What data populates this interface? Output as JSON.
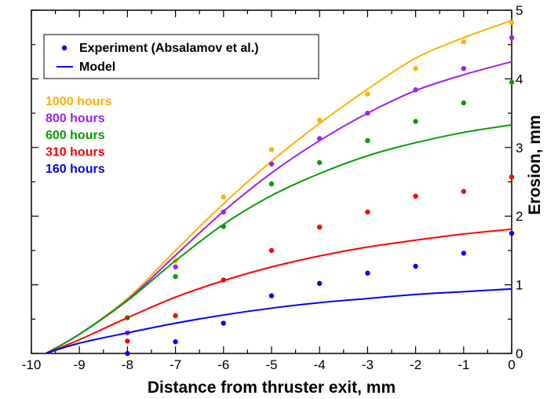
{
  "chart_data": {
    "type": "line",
    "xlabel": "Distance from thruster exit, mm",
    "ylabel": "Erosion, mm",
    "xlim": [
      -10,
      0
    ],
    "ylim": [
      0,
      5
    ],
    "x_ticks": [
      -10,
      -9,
      -8,
      -7,
      -6,
      -5,
      -4,
      -3,
      -2,
      -1,
      0
    ],
    "y_ticks": [
      0,
      1,
      2,
      3,
      4,
      5
    ],
    "grid": false,
    "y_axis_labels_side": "right",
    "legend": {
      "placement": "top-left",
      "entries": [
        {
          "label": "Experiment (Absalamov et al.)",
          "marker": "dot",
          "color": "#0000ff"
        },
        {
          "label": "Model",
          "marker": "line",
          "color": "#0000ff"
        }
      ]
    },
    "series": [
      {
        "name": "1000 hours",
        "color": "#ffb000",
        "experiment": [
          [
            -8,
            0.52
          ],
          [
            -7,
            1.35
          ],
          [
            -6,
            2.28
          ],
          [
            -5,
            2.97
          ],
          [
            -4,
            3.4
          ],
          [
            -3,
            3.78
          ],
          [
            -2,
            4.15
          ],
          [
            -1,
            4.54
          ],
          [
            0,
            4.82
          ]
        ],
        "model": [
          [
            -9.7,
            0.0
          ],
          [
            -9,
            0.28
          ],
          [
            -8,
            0.8
          ],
          [
            -7,
            1.5
          ],
          [
            -6,
            2.18
          ],
          [
            -5,
            2.8
          ],
          [
            -4,
            3.35
          ],
          [
            -3,
            3.85
          ],
          [
            -2,
            4.3
          ],
          [
            -1,
            4.6
          ],
          [
            0,
            4.85
          ]
        ]
      },
      {
        "name": "800 hours",
        "color": "#a020f0",
        "experiment": [
          [
            -8,
            0.3
          ],
          [
            -7,
            1.26
          ],
          [
            -6,
            2.06
          ],
          [
            -5,
            2.76
          ],
          [
            -4,
            3.13
          ],
          [
            -3,
            3.5
          ],
          [
            -2,
            3.84
          ],
          [
            -1,
            4.15
          ],
          [
            0,
            4.6
          ]
        ],
        "model": [
          [
            -9.7,
            0.0
          ],
          [
            -9,
            0.28
          ],
          [
            -8,
            0.78
          ],
          [
            -7,
            1.43
          ],
          [
            -6,
            2.07
          ],
          [
            -5,
            2.63
          ],
          [
            -4,
            3.1
          ],
          [
            -3,
            3.5
          ],
          [
            -2,
            3.83
          ],
          [
            -1,
            4.06
          ],
          [
            0,
            4.25
          ]
        ]
      },
      {
        "name": "600 hours",
        "color": "#00a000",
        "experiment": [
          [
            -8,
            0.52
          ],
          [
            -7,
            1.12
          ],
          [
            -6,
            1.85
          ],
          [
            -5,
            2.47
          ],
          [
            -4,
            2.78
          ],
          [
            -3,
            3.1
          ],
          [
            -2,
            3.38
          ],
          [
            -1,
            3.65
          ],
          [
            0,
            3.95
          ]
        ],
        "model": [
          [
            -9.7,
            0.0
          ],
          [
            -9,
            0.28
          ],
          [
            -8,
            0.77
          ],
          [
            -7,
            1.35
          ],
          [
            -6,
            1.88
          ],
          [
            -5,
            2.3
          ],
          [
            -4,
            2.62
          ],
          [
            -3,
            2.88
          ],
          [
            -2,
            3.07
          ],
          [
            -1,
            3.22
          ],
          [
            0,
            3.33
          ]
        ]
      },
      {
        "name": "310 hours",
        "color": "#ff0000",
        "experiment": [
          [
            -8,
            0.18
          ],
          [
            -7,
            0.55
          ],
          [
            -6,
            1.07
          ],
          [
            -5,
            1.5
          ],
          [
            -4,
            1.84
          ],
          [
            -3,
            2.06
          ],
          [
            -2,
            2.29
          ],
          [
            -1,
            2.36
          ],
          [
            0,
            2.57
          ]
        ],
        "model": [
          [
            -9.7,
            0.0
          ],
          [
            -9,
            0.2
          ],
          [
            -8,
            0.52
          ],
          [
            -7,
            0.82
          ],
          [
            -6,
            1.06
          ],
          [
            -5,
            1.26
          ],
          [
            -4,
            1.42
          ],
          [
            -3,
            1.55
          ],
          [
            -2,
            1.65
          ],
          [
            -1,
            1.74
          ],
          [
            0,
            1.81
          ]
        ]
      },
      {
        "name": "160 hours",
        "color": "#0000ff",
        "experiment": [
          [
            -8,
            0.0
          ],
          [
            -7,
            0.17
          ],
          [
            -6,
            0.44
          ],
          [
            -5,
            0.84
          ],
          [
            -4,
            1.02
          ],
          [
            -3,
            1.17
          ],
          [
            -2,
            1.27
          ],
          [
            -1,
            1.46
          ],
          [
            0,
            1.75
          ]
        ],
        "model": [
          [
            -9.7,
            0.0
          ],
          [
            -9,
            0.15
          ],
          [
            -8,
            0.3
          ],
          [
            -7,
            0.44
          ],
          [
            -6,
            0.56
          ],
          [
            -5,
            0.66
          ],
          [
            -4,
            0.74
          ],
          [
            -3,
            0.8
          ],
          [
            -2,
            0.86
          ],
          [
            -1,
            0.9
          ],
          [
            0,
            0.94
          ]
        ]
      }
    ]
  }
}
